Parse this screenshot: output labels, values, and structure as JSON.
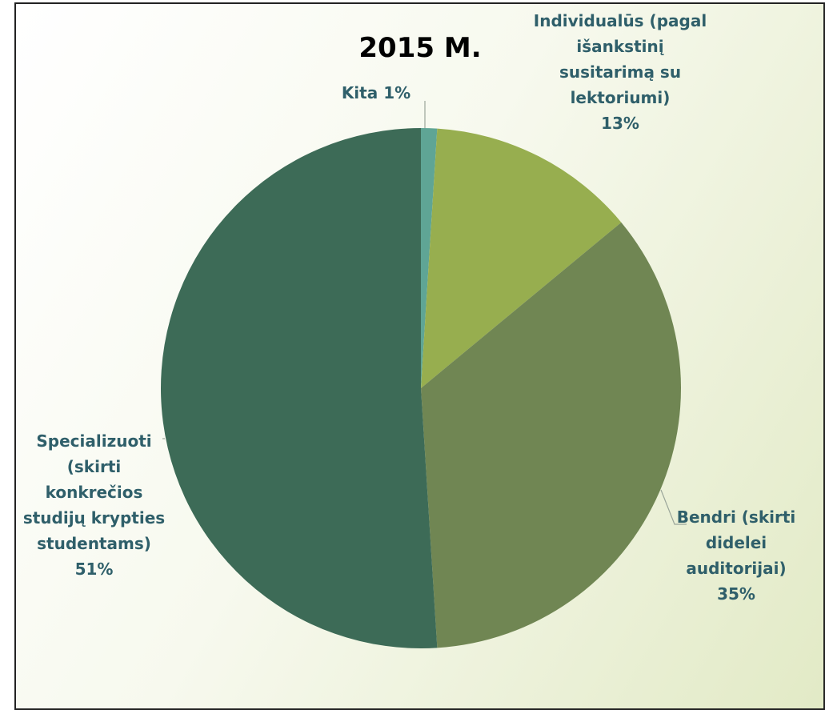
{
  "chart_data": {
    "type": "pie",
    "title": "2015 M.",
    "categories": [
      "Kita",
      "Individualūs (pagal išankstinį susitarimą su lektoriumi)",
      "Bendri (skirti didelei auditorijai)",
      "Specializuoti (skirti konkrečios studijų krypties studentams)"
    ],
    "values": [
      1,
      13,
      35,
      51
    ],
    "value_labels": [
      "1%",
      "13%",
      "35%",
      "51%"
    ],
    "colors": [
      "#5fa595",
      "#97ae4f",
      "#708653",
      "#3d6b57"
    ]
  }
}
